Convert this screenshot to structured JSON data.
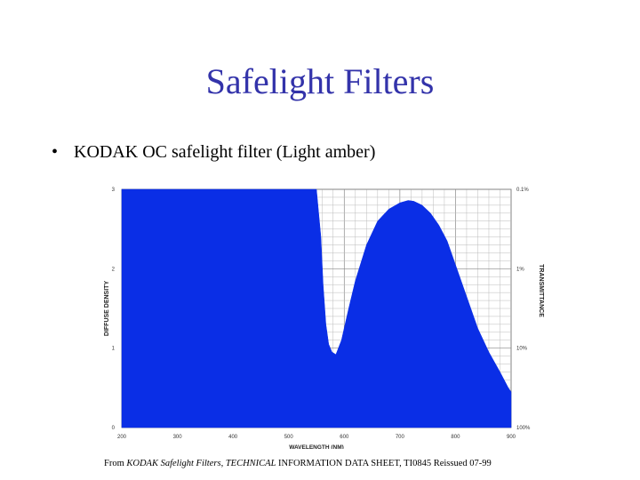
{
  "slide": {
    "title": "Safelight Filters",
    "bullet": "KODAK OC safelight filter (Light amber)",
    "bullet_symbol": "•",
    "caption_prefix": "From ",
    "caption_source": "KODAK Safelight Filters",
    "caption_sep": ", ",
    "caption_rest_italic": "TECHNICAL",
    "caption_rest": " INFORMATION DATA SHEET, TI0845 Reissued 07-99",
    "title_color": "#3333aa"
  },
  "chart_data": {
    "type": "area",
    "xlabel": "WAVELENGTH (NM)",
    "ylabel": "DIFFUSE DENSITY",
    "y2label": "TRANSMITTANCE",
    "xlim": [
      200,
      900
    ],
    "ylim": [
      0,
      3
    ],
    "x_ticks": [
      "200",
      "300",
      "400",
      "500",
      "600",
      "700",
      "800",
      "900"
    ],
    "y_ticks": [
      "0",
      "1",
      "2",
      "3"
    ],
    "y2_ticks": [
      {
        "label": "0.1%",
        "density": 3
      },
      {
        "label": "1%",
        "density": 2
      },
      {
        "label": "10%",
        "density": 1
      },
      {
        "label": "100%",
        "density": 0
      }
    ],
    "grid": true,
    "fill_color": "#0a2ee6",
    "series": [
      {
        "x": [
          200,
          550,
          558,
          562,
          567,
          572,
          578,
          585,
          595,
          608,
          620,
          640,
          660,
          680,
          700,
          715,
          725,
          740,
          755,
          770,
          785,
          800,
          820,
          840,
          860,
          880,
          895,
          900
        ],
        "y": [
          3.0,
          3.0,
          2.4,
          1.8,
          1.3,
          1.05,
          0.95,
          0.92,
          1.1,
          1.5,
          1.85,
          2.3,
          2.6,
          2.75,
          2.83,
          2.86,
          2.85,
          2.8,
          2.7,
          2.55,
          2.35,
          2.05,
          1.65,
          1.25,
          0.95,
          0.7,
          0.5,
          0.45
        ]
      }
    ]
  }
}
